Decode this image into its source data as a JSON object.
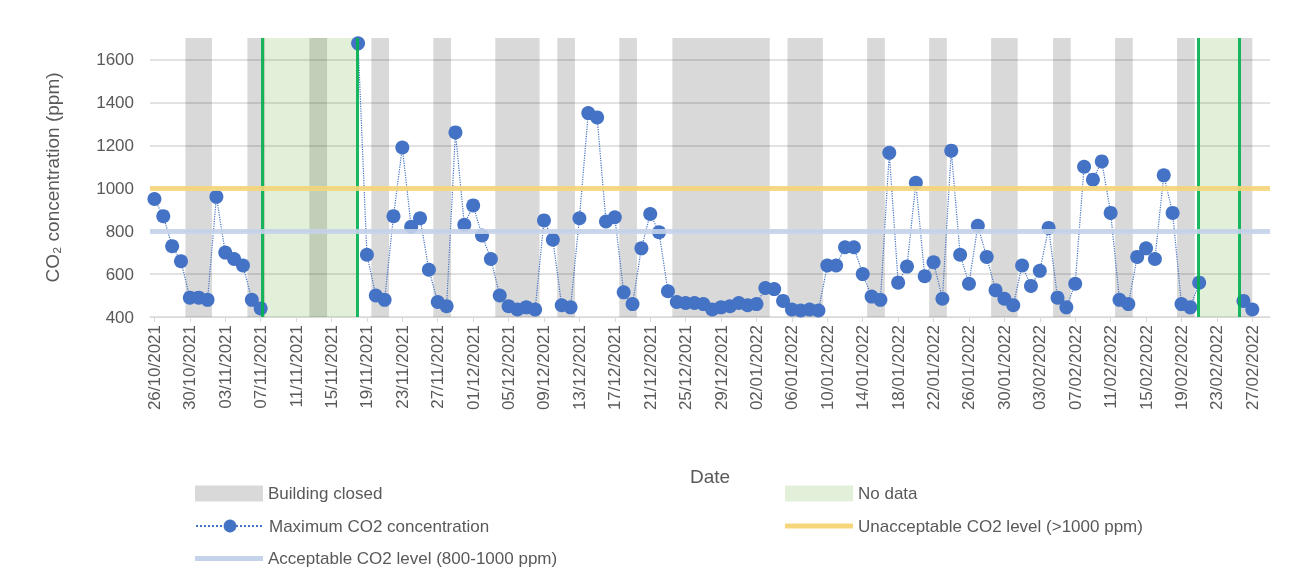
{
  "chart_data": {
    "type": "line",
    "xlabel": "Date",
    "ylabel": "CO₂ concentration (ppm)",
    "x": [
      "2021-10-26",
      "2021-10-27",
      "2021-10-28",
      "2021-10-29",
      "2021-10-30",
      "2021-10-31",
      "2021-11-01",
      "2021-11-02",
      "2021-11-03",
      "2021-11-04",
      "2021-11-05",
      "2021-11-06",
      "2021-11-07",
      "2021-11-08",
      "2021-11-09",
      "2021-11-10",
      "2021-11-11",
      "2021-11-12",
      "2021-11-13",
      "2021-11-14",
      "2021-11-15",
      "2021-11-16",
      "2021-11-17",
      "2021-11-18",
      "2021-11-19",
      "2021-11-20",
      "2021-11-21",
      "2021-11-22",
      "2021-11-23",
      "2021-11-24",
      "2021-11-25",
      "2021-11-26",
      "2021-11-27",
      "2021-11-28",
      "2021-11-29",
      "2021-11-30",
      "2021-12-01",
      "2021-12-02",
      "2021-12-03",
      "2021-12-04",
      "2021-12-05",
      "2021-12-06",
      "2021-12-07",
      "2021-12-08",
      "2021-12-09",
      "2021-12-10",
      "2021-12-11",
      "2021-12-12",
      "2021-12-13",
      "2021-12-14",
      "2021-12-15",
      "2021-12-16",
      "2021-12-17",
      "2021-12-18",
      "2021-12-19",
      "2021-12-20",
      "2021-12-21",
      "2021-12-22",
      "2021-12-23",
      "2021-12-24",
      "2021-12-25",
      "2021-12-26",
      "2021-12-27",
      "2021-12-28",
      "2021-12-29",
      "2021-12-30",
      "2021-12-31",
      "2022-01-01",
      "2022-01-02",
      "2022-01-03",
      "2022-01-04",
      "2022-01-05",
      "2022-01-06",
      "2022-01-07",
      "2022-01-08",
      "2022-01-09",
      "2022-01-10",
      "2022-01-11",
      "2022-01-12",
      "2022-01-13",
      "2022-01-14",
      "2022-01-15",
      "2022-01-16",
      "2022-01-17",
      "2022-01-18",
      "2022-01-19",
      "2022-01-20",
      "2022-01-21",
      "2022-01-22",
      "2022-01-23",
      "2022-01-24",
      "2022-01-25",
      "2022-01-26",
      "2022-01-27",
      "2022-01-28",
      "2022-01-29",
      "2022-01-30",
      "2022-01-31",
      "2022-02-01",
      "2022-02-02",
      "2022-02-03",
      "2022-02-04",
      "2022-02-05",
      "2022-02-06",
      "2022-02-07",
      "2022-02-08",
      "2022-02-09",
      "2022-02-10",
      "2022-02-11",
      "2022-02-12",
      "2022-02-13",
      "2022-02-14",
      "2022-02-15",
      "2022-02-16",
      "2022-02-17",
      "2022-02-18",
      "2022-02-19",
      "2022-02-20",
      "2022-02-21",
      "2022-02-22",
      "2022-02-23",
      "2022-02-24",
      "2022-02-25",
      "2022-02-26",
      "2022-02-27"
    ],
    "series": [
      {
        "name": "Maximum CO2 concentration",
        "color": "#4472c4",
        "values": [
          950,
          870,
          730,
          660,
          490,
          490,
          480,
          960,
          700,
          670,
          640,
          480,
          440,
          null,
          null,
          null,
          null,
          null,
          null,
          null,
          null,
          null,
          null,
          1675,
          690,
          500,
          480,
          870,
          1190,
          820,
          860,
          620,
          470,
          450,
          1260,
          830,
          920,
          780,
          670,
          500,
          450,
          435,
          445,
          435,
          850,
          760,
          455,
          445,
          860,
          1350,
          1330,
          845,
          865,
          515,
          460,
          720,
          880,
          795,
          520,
          470,
          465,
          465,
          460,
          435,
          445,
          450,
          465,
          455,
          460,
          535,
          530,
          475,
          435,
          430,
          435,
          430,
          640,
          640,
          725,
          725,
          600,
          495,
          480,
          1165,
          560,
          635,
          1025,
          590,
          655,
          485,
          1175,
          690,
          555,
          825,
          680,
          525,
          485,
          455,
          640,
          545,
          615,
          815,
          490,
          445,
          555,
          1100,
          1040,
          1125,
          885,
          480,
          460,
          680,
          720,
          670,
          1060,
          885,
          460,
          445,
          560,
          null,
          null,
          null,
          null,
          475,
          435
        ]
      }
    ],
    "xlim": [
      "2021-10-25T12:00",
      "2022-03-01T00:00"
    ],
    "xticks": [
      {
        "value": "2021-10-26",
        "label": "26/10/2021"
      },
      {
        "value": "2021-10-30",
        "label": "30/10/2021"
      },
      {
        "value": "2021-11-03",
        "label": "03/11/2021"
      },
      {
        "value": "2021-11-07",
        "label": "07/11/2021"
      },
      {
        "value": "2021-11-11",
        "label": "11/11/2021"
      },
      {
        "value": "2021-11-15",
        "label": "15/11/2021"
      },
      {
        "value": "2021-11-19",
        "label": "19/11/2021"
      },
      {
        "value": "2021-11-23",
        "label": "23/11/2021"
      },
      {
        "value": "2021-11-27",
        "label": "27/11/2021"
      },
      {
        "value": "2021-12-01",
        "label": "01/12/2021"
      },
      {
        "value": "2021-12-05",
        "label": "05/12/2021"
      },
      {
        "value": "2021-12-09",
        "label": "09/12/2021"
      },
      {
        "value": "2021-12-13",
        "label": "13/12/2021"
      },
      {
        "value": "2021-12-17",
        "label": "17/12/2021"
      },
      {
        "value": "2021-12-21",
        "label": "21/12/2021"
      },
      {
        "value": "2021-12-25",
        "label": "25/12/2021"
      },
      {
        "value": "2021-12-29",
        "label": "29/12/2021"
      },
      {
        "value": "2022-01-02",
        "label": "02/01/2022"
      },
      {
        "value": "2022-01-06",
        "label": "06/01/2022"
      },
      {
        "value": "2022-01-10",
        "label": "10/01/2022"
      },
      {
        "value": "2022-01-14",
        "label": "14/01/2022"
      },
      {
        "value": "2022-01-18",
        "label": "18/01/2022"
      },
      {
        "value": "2022-01-22",
        "label": "22/01/2022"
      },
      {
        "value": "2022-01-26",
        "label": "26/01/2022"
      },
      {
        "value": "2022-01-30",
        "label": "30/01/2022"
      },
      {
        "value": "2022-02-03",
        "label": "03/02/2022"
      },
      {
        "value": "2022-02-07",
        "label": "07/02/2022"
      },
      {
        "value": "2022-02-11",
        "label": "11/02/2022"
      },
      {
        "value": "2022-02-15",
        "label": "15/02/2022"
      },
      {
        "value": "2022-02-19",
        "label": "19/02/2022"
      },
      {
        "value": "2022-02-23",
        "label": "23/02/2022"
      },
      {
        "value": "2022-02-27",
        "label": "27/02/2022"
      }
    ],
    "ylim": [
      400,
      1700
    ],
    "yticks": [
      400,
      600,
      800,
      1000,
      1200,
      1400,
      1600
    ],
    "bands": [
      {
        "axis": "x",
        "from": "2021-10-29T12:00",
        "to": "2021-11-01T12:00",
        "label": "Building closed",
        "color": "#d9d9d9"
      },
      {
        "axis": "x",
        "from": "2021-11-07T03:00",
        "to": "2021-11-17T22:00",
        "label": "No data",
        "color": "#e2f0d9"
      },
      {
        "axis": "x",
        "from": "2022-02-20T22:00",
        "to": "2022-02-25T12:00",
        "color": "#e2f0d9"
      },
      {
        "axis": "x",
        "from": "2021-11-05T12:00",
        "to": "2021-11-07T12:00",
        "color": "#d9d9d9"
      },
      {
        "axis": "x",
        "from": "2021-11-12T12:00",
        "to": "2021-11-14T12:00",
        "color": "#d9d9d9"
      },
      {
        "axis": "x",
        "from": "2021-11-19T12:00",
        "to": "2021-11-21T12:00",
        "color": "#d9d9d9"
      },
      {
        "axis": "x",
        "from": "2021-11-26T12:00",
        "to": "2021-11-28T12:00",
        "color": "#d9d9d9"
      },
      {
        "axis": "x",
        "from": "2021-12-03T12:00",
        "to": "2021-12-08T12:00",
        "color": "#d9d9d9"
      },
      {
        "axis": "x",
        "from": "2021-12-10T12:00",
        "to": "2021-12-12T12:00",
        "color": "#d9d9d9"
      },
      {
        "axis": "x",
        "from": "2021-12-17T12:00",
        "to": "2021-12-19T12:00",
        "color": "#d9d9d9"
      },
      {
        "axis": "x",
        "from": "2021-12-23T12:00",
        "to": "2022-01-03T12:00",
        "color": "#d9d9d9"
      },
      {
        "axis": "x",
        "from": "2022-01-05T12:00",
        "to": "2022-01-09T12:00",
        "color": "#d9d9d9"
      },
      {
        "axis": "x",
        "from": "2022-01-14T12:00",
        "to": "2022-01-16T12:00",
        "color": "#d9d9d9"
      },
      {
        "axis": "x",
        "from": "2022-01-21T12:00",
        "to": "2022-01-23T12:00",
        "color": "#d9d9d9"
      },
      {
        "axis": "x",
        "from": "2022-01-28T12:00",
        "to": "2022-01-31T12:00",
        "color": "#d9d9d9"
      },
      {
        "axis": "x",
        "from": "2022-02-04T12:00",
        "to": "2022-02-06T12:00",
        "color": "#d9d9d9"
      },
      {
        "axis": "x",
        "from": "2022-02-11T12:00",
        "to": "2022-02-13T12:00",
        "color": "#d9d9d9"
      },
      {
        "axis": "x",
        "from": "2022-02-18T12:00",
        "to": "2022-02-20T12:00",
        "color": "#d9d9d9"
      },
      {
        "axis": "x",
        "from": "2022-02-25T12:00",
        "to": "2022-02-27T00:00",
        "color": "#d9d9d9"
      }
    ],
    "ref_lines": [
      {
        "axis": "x",
        "value": "2021-11-07T03:00",
        "color": "#00b050"
      },
      {
        "axis": "x",
        "value": "2021-11-17T22:00",
        "color": "#00b050"
      },
      {
        "axis": "x",
        "value": "2022-02-20T22:00",
        "color": "#00b050"
      },
      {
        "axis": "x",
        "value": "2022-02-25T12:00",
        "color": "#00b050"
      },
      {
        "axis": "y",
        "value": 1000,
        "label": "Unacceptable CO2 level (>1000 ppm)",
        "color": "#f5d67a"
      },
      {
        "axis": "y",
        "value": 800,
        "label": "Acceptable CO2 level (800-1000 ppm)",
        "color": "#c5d3ea"
      }
    ],
    "grid": "y",
    "legend": "bottom",
    "marker": "circle",
    "line_style": "dotted"
  }
}
